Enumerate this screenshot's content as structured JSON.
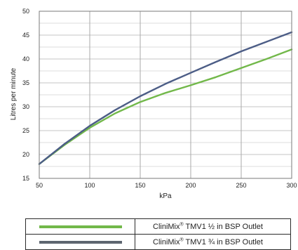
{
  "chart_data": {
    "type": "line",
    "xlabel": "kPa",
    "ylabel": "Litres per minute",
    "xlim": [
      50,
      300
    ],
    "ylim": [
      15,
      50
    ],
    "xticks": [
      50,
      100,
      150,
      200,
      250,
      300
    ],
    "yticks": [
      15,
      20,
      25,
      30,
      35,
      40,
      45,
      50
    ],
    "grid": true,
    "legend_position": "bottom",
    "series": [
      {
        "name": "CliniMix® TMV1 ½ in BSP Outlet",
        "color": "#72b84a",
        "x": [
          50,
          75,
          100,
          125,
          150,
          175,
          200,
          225,
          250,
          275,
          300
        ],
        "values": [
          18,
          22,
          25.6,
          28.6,
          31,
          32.9,
          34.5,
          36.2,
          38.1,
          40,
          42
        ]
      },
      {
        "name": "CliniMix® TMV1 ¾ in BSP Outlet",
        "color": "#4c5d86",
        "x": [
          50,
          75,
          100,
          125,
          150,
          175,
          200,
          225,
          250,
          275,
          300
        ],
        "values": [
          18,
          22.2,
          26,
          29.3,
          32.2,
          34.8,
          37.1,
          39.4,
          41.6,
          43.6,
          45.6
        ]
      }
    ]
  },
  "legend": {
    "items": [
      {
        "brand": "CliniMix",
        "mark": "®",
        "text": " TMV1 ½ in BSP Outlet",
        "color": "#72b84a"
      },
      {
        "brand": "CliniMix",
        "mark": "®",
        "text": " TMV1 ¾ in BSP Outlet",
        "color": "#5e6670"
      }
    ]
  }
}
